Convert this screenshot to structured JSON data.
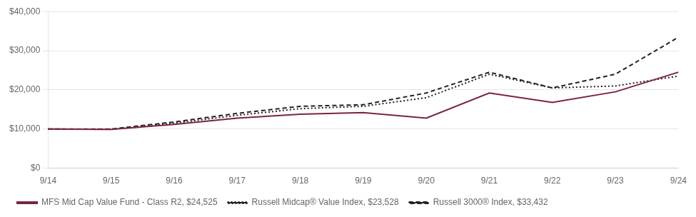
{
  "chart_data": {
    "type": "line",
    "categories": [
      "9/14",
      "9/15",
      "9/16",
      "9/17",
      "9/18",
      "9/19",
      "9/20",
      "9/21",
      "9/22",
      "9/23",
      "9/24"
    ],
    "series": [
      {
        "name": "MFS Mid Cap Value Fund - Class R2, $24,525",
        "color": "#7B2342",
        "line_style": "solid",
        "values": [
          10000,
          9900,
          11200,
          12800,
          13800,
          14200,
          12800,
          19200,
          16800,
          19500,
          24525
        ]
      },
      {
        "name": "Russell Midcap® Value Index, $23,528",
        "color": "#222222",
        "line_style": "dotted",
        "values": [
          10000,
          9900,
          11500,
          13500,
          15200,
          15800,
          18000,
          24000,
          20500,
          21000,
          23528
        ]
      },
      {
        "name": "Russell 3000® Index, $33,432",
        "color": "#222222",
        "line_style": "dashed",
        "values": [
          10000,
          10000,
          11800,
          14000,
          15800,
          16200,
          19200,
          24500,
          20500,
          24000,
          33432
        ]
      }
    ],
    "ylim": [
      0,
      40000
    ],
    "yticks": [
      {
        "value": 0,
        "label": "$0"
      },
      {
        "value": 10000,
        "label": "$10,000"
      },
      {
        "value": 20000,
        "label": "$20,000"
      },
      {
        "value": 30000,
        "label": "$30,000"
      },
      {
        "value": 40000,
        "label": "$40,000"
      }
    ],
    "grid": "y",
    "legend": "bottom"
  }
}
